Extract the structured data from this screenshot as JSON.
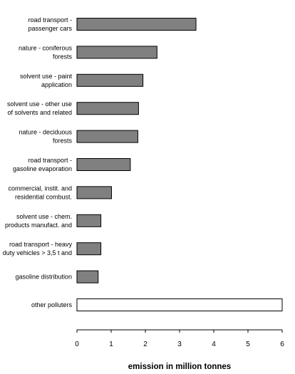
{
  "chart_data": {
    "type": "bar",
    "orientation": "horizontal",
    "categories": [
      [
        "road transport -",
        "passenger cars"
      ],
      [
        "nature - coniferous",
        "forests"
      ],
      [
        "solvent use - paint",
        "application"
      ],
      [
        "solvent use - other use",
        "of solvents and related"
      ],
      [
        "nature - deciduous",
        "forests"
      ],
      [
        "road transport -",
        "gasoline evaporation"
      ],
      [
        "commercial, instit. and",
        "residential combust."
      ],
      [
        "solvent use - chem.",
        "products manufact. and"
      ],
      [
        "road transport - heavy",
        "duty vehicles > 3,5 t and"
      ],
      [
        "gasoline distribution"
      ],
      [
        "other polluters"
      ]
    ],
    "values": [
      3.48,
      2.34,
      1.93,
      1.8,
      1.78,
      1.56,
      1.01,
      0.7,
      0.7,
      0.62,
      6.0
    ],
    "colors": [
      "#808080",
      "#808080",
      "#808080",
      "#808080",
      "#808080",
      "#808080",
      "#808080",
      "#808080",
      "#808080",
      "#808080",
      "#ffffff"
    ],
    "bar_stroke": "#000000",
    "xlabel": "emission in million tonnes",
    "xlim": [
      0,
      6
    ],
    "xticks": [
      "0",
      "1",
      "2",
      "3",
      "4",
      "5",
      "6"
    ],
    "grid": false,
    "legend": "none"
  }
}
